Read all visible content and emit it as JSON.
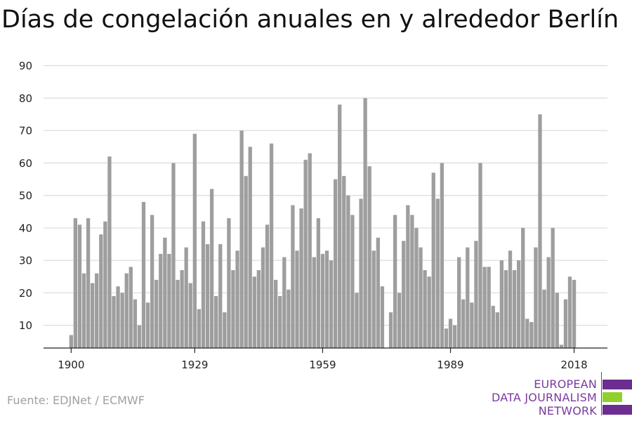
{
  "chart_data": {
    "type": "bar",
    "title": "Días de congelación anuales en y alrededor Berlín",
    "xlabel": "",
    "ylabel": "",
    "x_start": 1900,
    "x_end": 2018,
    "x_ticks": [
      "1900",
      "1929",
      "1959",
      "1989",
      "2018"
    ],
    "y_ticks": [
      10,
      20,
      30,
      40,
      50,
      60,
      70,
      80,
      90
    ],
    "ylim": [
      3,
      90
    ],
    "grid": true,
    "bar_color": "#9e9e9e",
    "values": [
      7,
      43,
      41,
      26,
      43,
      23,
      26,
      38,
      42,
      62,
      19,
      22,
      20,
      26,
      28,
      18,
      10,
      48,
      17,
      44,
      24,
      32,
      37,
      32,
      60,
      24,
      27,
      34,
      23,
      69,
      15,
      42,
      35,
      52,
      19,
      35,
      14,
      43,
      27,
      33,
      70,
      56,
      65,
      25,
      27,
      34,
      41,
      66,
      24,
      19,
      31,
      21,
      47,
      33,
      46,
      61,
      63,
      31,
      43,
      32,
      33,
      30,
      55,
      78,
      56,
      50,
      44,
      20,
      49,
      80,
      59,
      33,
      37,
      22,
      3,
      14,
      44,
      20,
      36,
      47,
      44,
      40,
      34,
      27,
      25,
      57,
      49,
      60,
      9,
      12,
      10,
      31,
      18,
      34,
      17,
      36,
      60,
      28,
      28,
      16,
      14,
      30,
      27,
      33,
      27,
      30,
      40,
      12,
      11,
      34,
      75,
      21,
      31,
      40,
      20,
      4,
      18,
      25,
      24
    ]
  },
  "source": "Fuente: EDJNet / ECMWF",
  "logo": {
    "line1": "EUROPEAN",
    "line2": "DATA JOURNALISM",
    "line3": "NETWORK",
    "purple": "#6b2d8f",
    "green": "#8fd12a"
  }
}
